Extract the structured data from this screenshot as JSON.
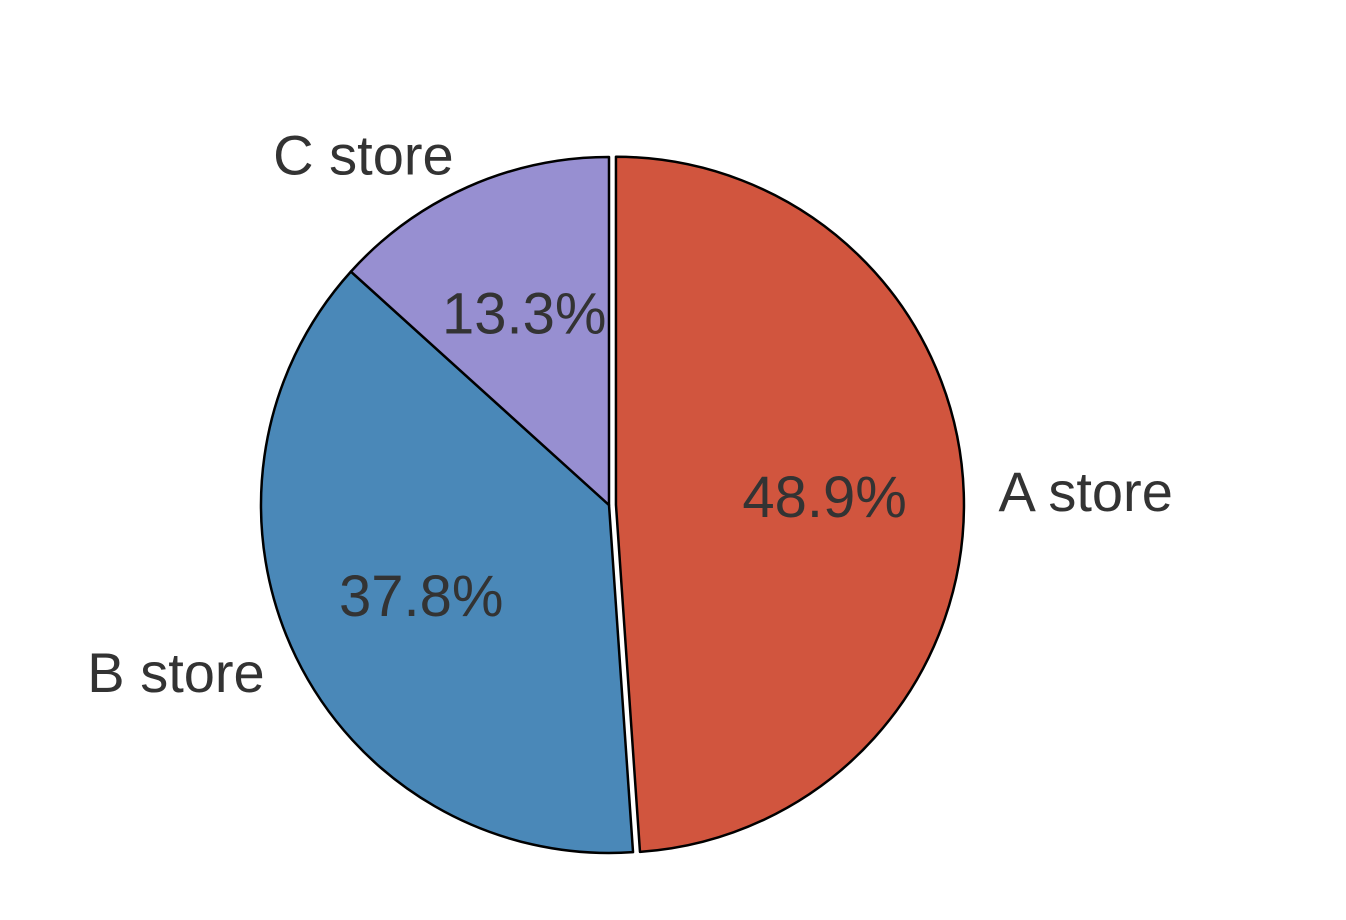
{
  "chart_data": {
    "type": "pie",
    "categories": [
      "A store",
      "B store",
      "C store"
    ],
    "values": [
      48.9,
      37.8,
      13.3
    ],
    "value_labels": [
      "48.9%",
      "37.8%",
      "13.3%"
    ],
    "colors": [
      "#d1553e",
      "#4a88b8",
      "#978fd1"
    ],
    "explode": [
      0.02,
      0,
      0
    ],
    "start_angle_deg": 90,
    "direction": "clockwise",
    "title": "",
    "legend": "none"
  }
}
